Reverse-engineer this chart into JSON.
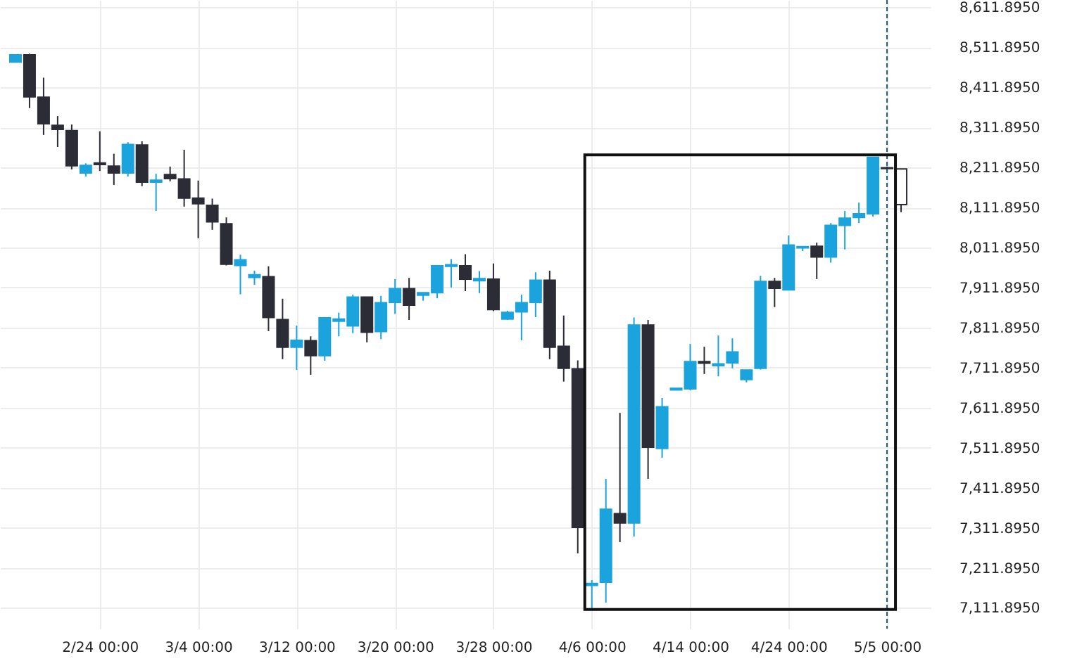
{
  "chart_data": {
    "type": "candlestick",
    "categories": [
      null,
      null,
      null,
      null,
      null,
      null,
      "2/24 00:00",
      null,
      null,
      null,
      null,
      null,
      null,
      "3/4 00:00",
      null,
      null,
      null,
      null,
      null,
      null,
      "3/12 00:00",
      null,
      null,
      null,
      null,
      null,
      null,
      "3/20 00:00",
      null,
      null,
      null,
      null,
      null,
      null,
      "3/28 00:00",
      null,
      null,
      null,
      null,
      null,
      null,
      "4/6 00:00",
      null,
      null,
      null,
      null,
      null,
      null,
      "4/14 00:00",
      null,
      null,
      null,
      null,
      null,
      null,
      "4/24 00:00",
      null,
      null,
      null,
      null,
      null,
      null,
      "5/5 00:00",
      null
    ],
    "ohlc": [
      [
        8475,
        8493,
        8475,
        8493
      ],
      [
        8493,
        8496,
        8360,
        8388
      ],
      [
        8387,
        8436,
        8293,
        8321
      ],
      [
        8317,
        8340,
        8263,
        8307
      ],
      [
        8304,
        8319,
        8207,
        8216
      ],
      [
        8198,
        8222,
        8189,
        8217
      ],
      [
        8223,
        8302,
        8203,
        8219
      ],
      [
        8215,
        8246,
        8168,
        8198
      ],
      [
        8198,
        8275,
        8189,
        8269
      ],
      [
        8268,
        8277,
        8165,
        8175
      ],
      [
        8175,
        8196,
        8103,
        8180
      ],
      [
        8194,
        8214,
        8177,
        8184
      ],
      [
        8183,
        8256,
        8114,
        8135
      ],
      [
        8135,
        8179,
        8035,
        8121
      ],
      [
        8117,
        8134,
        8056,
        8076
      ],
      [
        8071,
        8087,
        7967,
        7970
      ],
      [
        7967,
        7994,
        7895,
        7981
      ],
      [
        7937,
        7954,
        7919,
        7944
      ],
      [
        7939,
        7965,
        7803,
        7837
      ],
      [
        7832,
        7884,
        7733,
        7763
      ],
      [
        7763,
        7817,
        7706,
        7780
      ],
      [
        7779,
        7790,
        7694,
        7742
      ],
      [
        7742,
        7836,
        7729,
        7836
      ],
      [
        7828,
        7849,
        7790,
        7833
      ],
      [
        7816,
        7894,
        7798,
        7888
      ],
      [
        7888,
        7888,
        7775,
        7800
      ],
      [
        7802,
        7891,
        7783,
        7874
      ],
      [
        7875,
        7933,
        7846,
        7909
      ],
      [
        7909,
        7936,
        7831,
        7868
      ],
      [
        7893,
        7899,
        7879,
        7899
      ],
      [
        7899,
        7966,
        7885,
        7966
      ],
      [
        7965,
        7983,
        7912,
        7969
      ],
      [
        7966,
        7995,
        7903,
        7933
      ],
      [
        7929,
        7953,
        7898,
        7934
      ],
      [
        7933,
        7972,
        7853,
        7857
      ],
      [
        7833,
        7854,
        7831,
        7850
      ],
      [
        7851,
        7894,
        7780,
        7874
      ],
      [
        7875,
        7950,
        7838,
        7930
      ],
      [
        7930,
        7954,
        7733,
        7763
      ],
      [
        7765,
        7842,
        7677,
        7710
      ],
      [
        7709,
        7730,
        7248,
        7313
      ],
      [
        7168,
        7181,
        7109,
        7173
      ],
      [
        7176,
        7434,
        7125,
        7358
      ],
      [
        7347,
        7599,
        7276,
        7324
      ],
      [
        7324,
        7837,
        7290,
        7818
      ],
      [
        7818,
        7831,
        7434,
        7513
      ],
      [
        7510,
        7636,
        7487,
        7614
      ],
      [
        7656,
        7660,
        7655,
        7660
      ],
      [
        7659,
        7771,
        7655,
        7727
      ],
      [
        7727,
        7764,
        7696,
        7723
      ],
      [
        7717,
        7792,
        7690,
        7721
      ],
      [
        7724,
        7785,
        7710,
        7751
      ],
      [
        7682,
        7706,
        7675,
        7706
      ],
      [
        7710,
        7941,
        7707,
        7927
      ],
      [
        7927,
        7936,
        7863,
        7910
      ],
      [
        7906,
        8042,
        7906,
        8018
      ],
      [
        8011,
        8014,
        8003,
        8014
      ],
      [
        8015,
        8024,
        7933,
        7988
      ],
      [
        7988,
        8073,
        7974,
        8067
      ],
      [
        8067,
        8103,
        8007,
        8085
      ],
      [
        8087,
        8124,
        8073,
        8096
      ],
      [
        8096,
        8237,
        8089,
        8237
      ],
      [
        8211,
        8214,
        8204,
        8209
      ],
      [
        8208,
        8208,
        8100,
        8119
      ]
    ],
    "colors": [
      "#1ba3dd",
      "#2b2c36",
      "#2b2c36",
      "#2b2c36",
      "#2b2c36",
      "#1ba3dd",
      "#2b2c36",
      "#2b2c36",
      "#1ba3dd",
      "#2b2c36",
      "#1ba3dd",
      "#2b2c36",
      "#2b2c36",
      "#2b2c36",
      "#2b2c36",
      "#2b2c36",
      "#1ba3dd",
      "#1ba3dd",
      "#2b2c36",
      "#2b2c36",
      "#1ba3dd",
      "#2b2c36",
      "#1ba3dd",
      "#1ba3dd",
      "#1ba3dd",
      "#2b2c36",
      "#1ba3dd",
      "#1ba3dd",
      "#2b2c36",
      "#1ba3dd",
      "#1ba3dd",
      "#1ba3dd",
      "#2b2c36",
      "#1ba3dd",
      "#2b2c36",
      "#1ba3dd",
      "#1ba3dd",
      "#1ba3dd",
      "#2b2c36",
      "#2b2c36",
      "#2b2c36",
      "#1ba3dd",
      "#1ba3dd",
      "#2b2c36",
      "#1ba3dd",
      "#2b2c36",
      "#1ba3dd",
      "#1ba3dd",
      "#1ba3dd",
      "#2b2c36",
      "#1ba3dd",
      "#1ba3dd",
      "#1ba3dd",
      "#1ba3dd",
      "#2b2c36",
      "#1ba3dd",
      "#1ba3dd",
      "#2b2c36",
      "#1ba3dd",
      "#1ba3dd",
      "#1ba3dd",
      "#1ba3dd",
      "#2b2c36",
      "#ffffff"
    ],
    "ylim": [
      7060,
      8630
    ],
    "yticks": [
      {
        "value": 7111.895,
        "label": "7,111.8950"
      },
      {
        "value": 7211.895,
        "label": "7,211.8950"
      },
      {
        "value": 7311.895,
        "label": "7,311.8950"
      },
      {
        "value": 7411.895,
        "label": "7,411.8950"
      },
      {
        "value": 7511.895,
        "label": "7,511.8950"
      },
      {
        "value": 7611.895,
        "label": "7,611.8950"
      },
      {
        "value": 7711.895,
        "label": "7,711.8950"
      },
      {
        "value": 7811.895,
        "label": "7,811.8950"
      },
      {
        "value": 7911.895,
        "label": "7,911.8950"
      },
      {
        "value": 8011.895,
        "label": "8,011.8950"
      },
      {
        "value": 8111.895,
        "label": "8,111.8950"
      },
      {
        "value": 8211.895,
        "label": "8,211.8950"
      },
      {
        "value": 8311.895,
        "label": "8,311.8950"
      },
      {
        "value": 8411.895,
        "label": "8,411.8950"
      },
      {
        "value": 8511.895,
        "label": "8,511.8950"
      },
      {
        "value": 8611.895,
        "label": "8,611.8950"
      }
    ],
    "ref_lines": [
      {
        "axis": "x",
        "value": "5/5 00:00",
        "color": "#1a5c7a",
        "line_style": "dashed"
      }
    ],
    "grid": true
  }
}
